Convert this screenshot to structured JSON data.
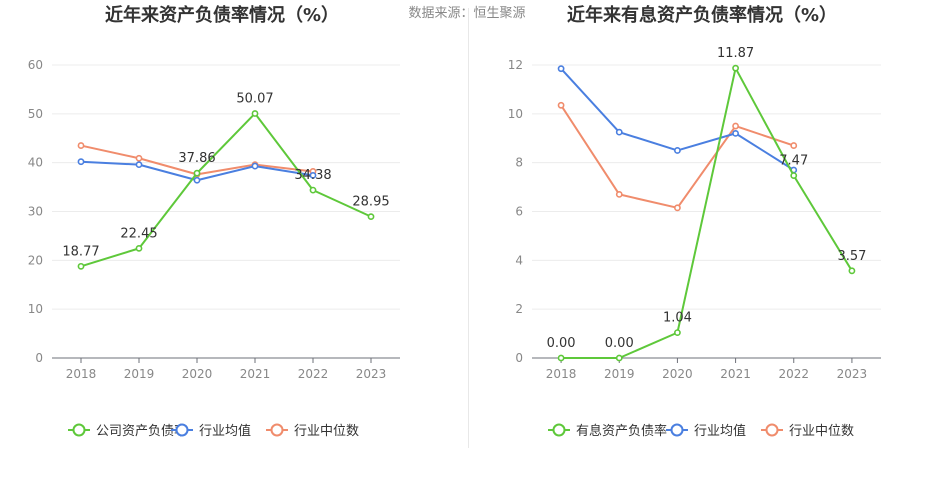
{
  "source_note": "数据来源：恒生聚源",
  "colors": {
    "company": "#5ec83a",
    "industry_avg": "#4a7fe0",
    "industry_median": "#f08c6c",
    "axis": "#888888",
    "grid": "#ececec",
    "title": "#333333"
  },
  "chart_data": [
    {
      "type": "line",
      "title": "近年来资产负债率情况（%）",
      "categories": [
        "2018",
        "2019",
        "2020",
        "2021",
        "2022",
        "2023"
      ],
      "ylim": [
        0,
        60
      ],
      "yticks": [
        0,
        10,
        20,
        30,
        40,
        50,
        60
      ],
      "grid": true,
      "legend_position": "bottom",
      "series": [
        {
          "key": "company",
          "name": "公司资产负债率",
          "values": [
            18.77,
            22.45,
            37.86,
            50.07,
            34.38,
            28.95
          ],
          "labels": [
            "18.77",
            "22.45",
            "37.86",
            "50.07",
            "34.38",
            "28.95"
          ]
        },
        {
          "key": "industry_avg",
          "name": "行业均值",
          "values": [
            40.2,
            39.6,
            36.4,
            39.3,
            37.4,
            null
          ]
        },
        {
          "key": "industry_median",
          "name": "行业中位数",
          "values": [
            43.5,
            40.9,
            37.6,
            39.6,
            38.2,
            null
          ]
        }
      ]
    },
    {
      "type": "line",
      "title": "近年来有息资产负债率情况（%）",
      "categories": [
        "2018",
        "2019",
        "2020",
        "2021",
        "2022",
        "2023"
      ],
      "ylim": [
        0,
        12
      ],
      "yticks": [
        0,
        2,
        4,
        6,
        8,
        10,
        12
      ],
      "grid": true,
      "legend_position": "bottom",
      "series": [
        {
          "key": "company",
          "name": "有息资产负债率",
          "values": [
            0.0,
            0.0,
            1.04,
            11.87,
            7.47,
            3.57
          ],
          "labels": [
            "0.00",
            "0.00",
            "1.04",
            "11.87",
            "7.47",
            "3.57"
          ]
        },
        {
          "key": "industry_avg",
          "name": "行业均值",
          "values": [
            11.85,
            9.25,
            8.5,
            9.2,
            7.7,
            null
          ]
        },
        {
          "key": "industry_median",
          "name": "行业中位数",
          "values": [
            10.35,
            6.7,
            6.15,
            9.5,
            8.7,
            null
          ]
        }
      ]
    }
  ]
}
